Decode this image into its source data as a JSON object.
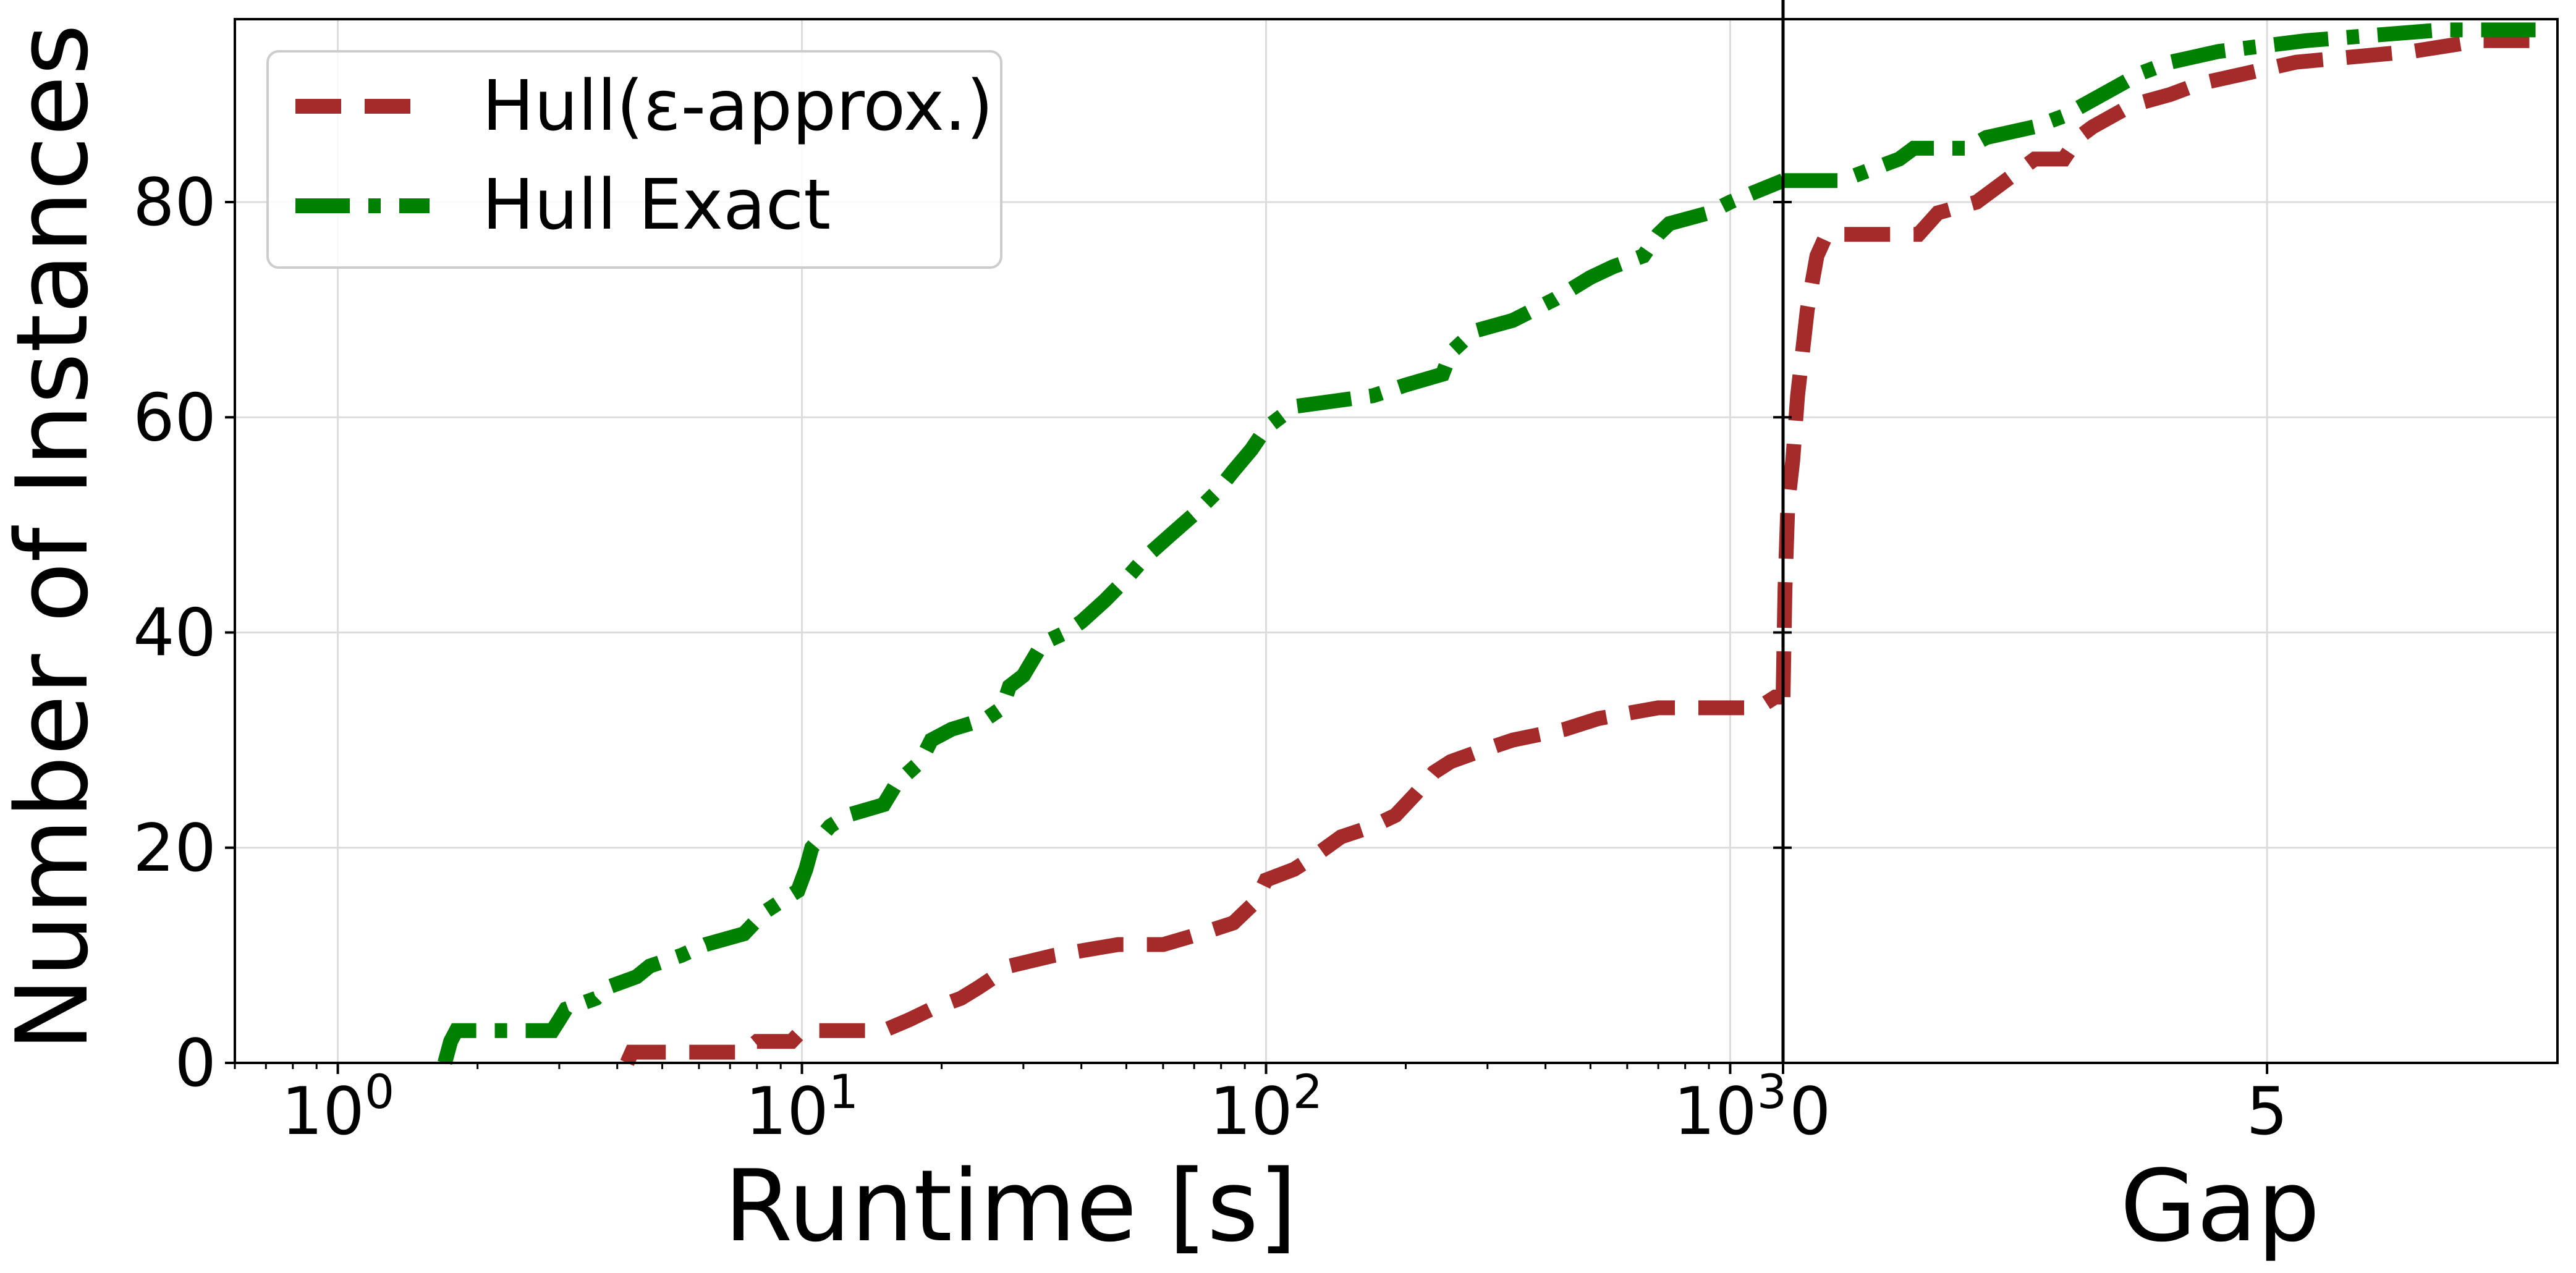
{
  "chart_data": {
    "type": "line",
    "ylabel": "Number of Instances",
    "ylim": [
      0,
      97
    ],
    "yticks": [
      0,
      20,
      40,
      60,
      80
    ],
    "grid": true,
    "legend_position": "top-left",
    "legend": [
      {
        "name": "Hull(ε-approx.)",
        "color": "#a52a2a",
        "dash": "dashed"
      },
      {
        "name": "Hull Exact",
        "color": "#008000",
        "dash": "dashdot"
      }
    ],
    "panels": [
      {
        "id": "runtime",
        "xlabel": "Runtime [s]",
        "xscale": "log",
        "xlim": [
          0.6,
          1300
        ],
        "xticks": [
          {
            "value": 1,
            "base": "10",
            "exp": "0"
          },
          {
            "value": 10,
            "base": "10",
            "exp": "1"
          },
          {
            "value": 100,
            "base": "10",
            "exp": "2"
          },
          {
            "value": 1000,
            "base": "10",
            "exp": "3"
          }
        ],
        "series": [
          {
            "name": "Hull(ε-approx.)",
            "points": [
              [
                4.2,
                0
              ],
              [
                4.3,
                1
              ],
              [
                7.5,
                1
              ],
              [
                8,
                2
              ],
              [
                9.5,
                2
              ],
              [
                10,
                3
              ],
              [
                15,
                3
              ],
              [
                17,
                4
              ],
              [
                19,
                5
              ],
              [
                22,
                6
              ],
              [
                24,
                7
              ],
              [
                26,
                8
              ],
              [
                28,
                9
              ],
              [
                35,
                10
              ],
              [
                48,
                11
              ],
              [
                60,
                11
              ],
              [
                72,
                12
              ],
              [
                85,
                13
              ],
              [
                95,
                15
              ],
              [
                100,
                17
              ],
              [
                115,
                18
              ],
              [
                125,
                19
              ],
              [
                145,
                21
              ],
              [
                170,
                22
              ],
              [
                190,
                23
              ],
              [
                210,
                25
              ],
              [
                230,
                27
              ],
              [
                250,
                28
              ],
              [
                290,
                29
              ],
              [
                340,
                30
              ],
              [
                440,
                31
              ],
              [
                520,
                32
              ],
              [
                700,
                33
              ],
              [
                1150,
                33
              ],
              [
                1250,
                34
              ],
              [
                1300,
                34
              ]
            ]
          },
          {
            "name": "Hull Exact",
            "points": [
              [
                1.7,
                0
              ],
              [
                1.75,
                2
              ],
              [
                1.8,
                3
              ],
              [
                2.9,
                3
              ],
              [
                3.0,
                4
              ],
              [
                3.1,
                5
              ],
              [
                3.6,
                6
              ],
              [
                3.8,
                7
              ],
              [
                4.4,
                8
              ],
              [
                4.7,
                9
              ],
              [
                5.5,
                10
              ],
              [
                6.2,
                11
              ],
              [
                7.5,
                12
              ],
              [
                8.3,
                14
              ],
              [
                9.0,
                15
              ],
              [
                9.8,
                16
              ],
              [
                10.2,
                18
              ],
              [
                10.5,
                20
              ],
              [
                11.5,
                22
              ],
              [
                12.5,
                23
              ],
              [
                15,
                24
              ],
              [
                16,
                26
              ],
              [
                18,
                28
              ],
              [
                19,
                30
              ],
              [
                21,
                31
              ],
              [
                25,
                32
              ],
              [
                27,
                33
              ],
              [
                28,
                35
              ],
              [
                30,
                36
              ],
              [
                33,
                39
              ],
              [
                37,
                40
              ],
              [
                40,
                41
              ],
              [
                45,
                43
              ],
              [
                50,
                45
              ],
              [
                55,
                47
              ],
              [
                62,
                49
              ],
              [
                70,
                51
              ],
              [
                78,
                53
              ],
              [
                85,
                55
              ],
              [
                93,
                57
              ],
              [
                100,
                59
              ],
              [
                115,
                61
              ],
              [
                170,
                62
              ],
              [
                200,
                63
              ],
              [
                240,
                64
              ],
              [
                250,
                66
              ],
              [
                280,
                68
              ],
              [
                340,
                69
              ],
              [
                420,
                71
              ],
              [
                500,
                73
              ],
              [
                560,
                74
              ],
              [
                650,
                75
              ],
              [
                700,
                77
              ],
              [
                740,
                78
              ],
              [
                900,
                79
              ],
              [
                1000,
                80
              ],
              [
                1300,
                82
              ]
            ]
          }
        ]
      },
      {
        "id": "gap",
        "xlabel": "Gap",
        "xscale": "linear",
        "xlim": [
          0,
          8
        ],
        "xticks": [
          {
            "value": 0,
            "label": "0"
          },
          {
            "value": 5,
            "label": "5"
          }
        ],
        "series": [
          {
            "name": "Hull(ε-approx.)",
            "points": [
              [
                0,
                34
              ],
              [
                0.02,
                44
              ],
              [
                0.05,
                52
              ],
              [
                0.1,
                56
              ],
              [
                0.15,
                62
              ],
              [
                0.25,
                70
              ],
              [
                0.35,
                75
              ],
              [
                0.45,
                77
              ],
              [
                1.4,
                77
              ],
              [
                1.6,
                79
              ],
              [
                2.0,
                80
              ],
              [
                2.3,
                82
              ],
              [
                2.6,
                84
              ],
              [
                2.9,
                84
              ],
              [
                3.05,
                86
              ],
              [
                3.2,
                87
              ],
              [
                3.6,
                89
              ],
              [
                4.0,
                90
              ],
              [
                4.3,
                91
              ],
              [
                4.8,
                92
              ],
              [
                5.3,
                93
              ],
              [
                6.5,
                94
              ],
              [
                7.2,
                95
              ],
              [
                7.9,
                95
              ]
            ]
          },
          {
            "name": "Hull Exact",
            "points": [
              [
                0,
                82
              ],
              [
                0.6,
                82
              ],
              [
                0.9,
                83
              ],
              [
                1.2,
                84
              ],
              [
                1.35,
                85
              ],
              [
                1.9,
                85
              ],
              [
                2.1,
                86
              ],
              [
                2.6,
                87
              ],
              [
                2.9,
                88
              ],
              [
                3.1,
                89
              ],
              [
                3.3,
                90
              ],
              [
                3.5,
                91
              ],
              [
                3.7,
                92
              ],
              [
                4.0,
                93
              ],
              [
                4.5,
                94
              ],
              [
                5.4,
                95
              ],
              [
                6.8,
                96
              ],
              [
                7.9,
                96
              ]
            ]
          }
        ]
      }
    ]
  }
}
